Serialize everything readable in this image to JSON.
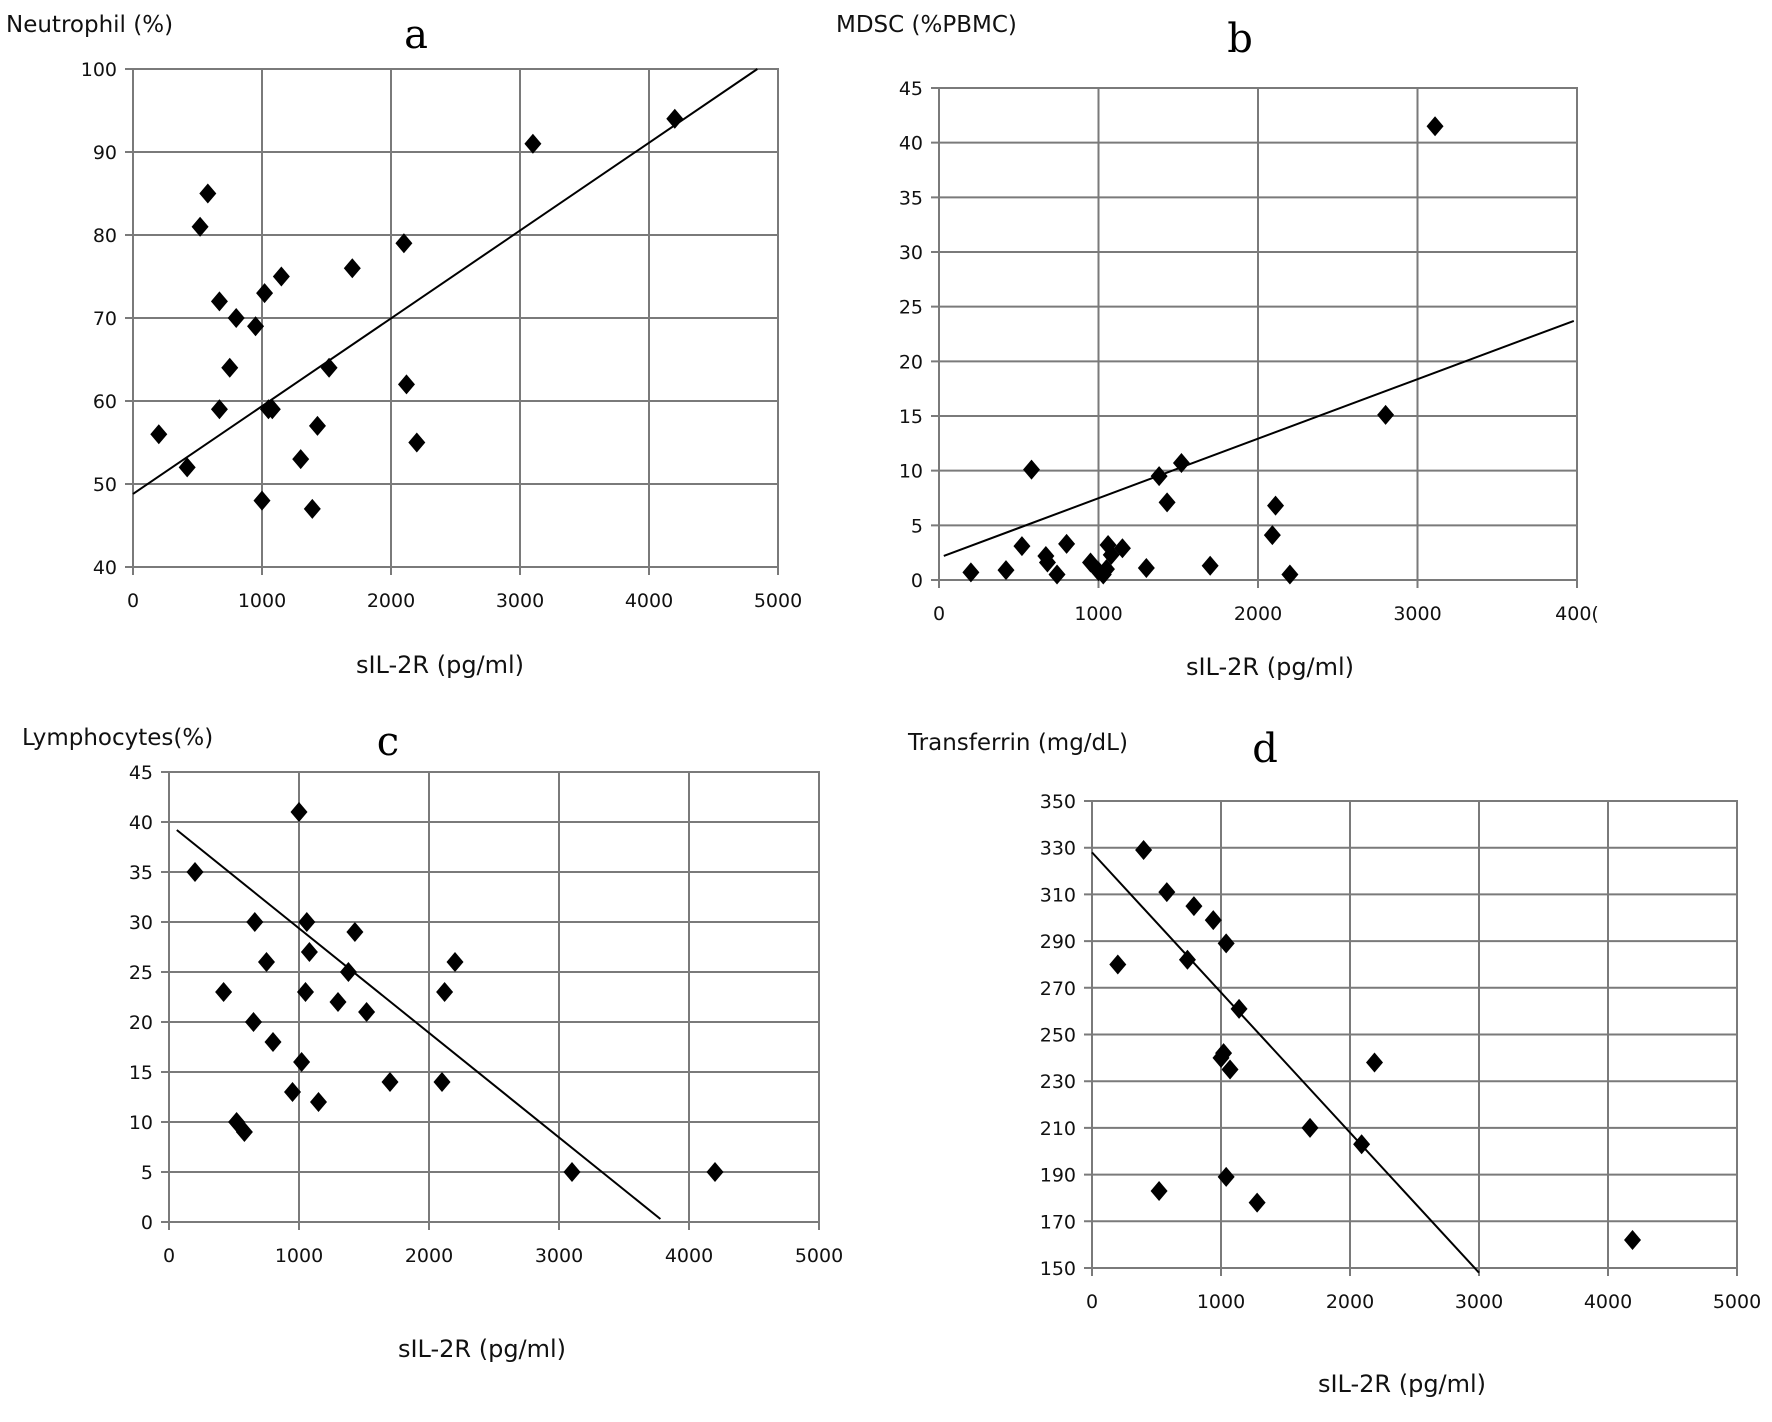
{
  "chart_data": [
    {
      "type": "scatter",
      "panel": "a",
      "title": "a",
      "ylabel": "Neutrophil (%)",
      "xlabel": "sIL-2R (pg/ml)",
      "xlim": [
        0,
        5000
      ],
      "ylim": [
        40,
        100
      ],
      "xticks": [
        0,
        1000,
        2000,
        3000,
        4000,
        5000
      ],
      "yticks": [
        40,
        50,
        60,
        70,
        80,
        90,
        100
      ],
      "xtick_labels": [
        "0",
        "1000",
        "2000",
        "3000",
        "4000",
        "5000"
      ],
      "ytick_labels": [
        "40",
        "50",
        "60",
        "70",
        "80",
        "90",
        "100"
      ],
      "grid": true,
      "marker": "diamond",
      "points": [
        [
          200,
          56
        ],
        [
          420,
          52
        ],
        [
          520,
          81
        ],
        [
          580,
          85
        ],
        [
          670,
          59
        ],
        [
          670,
          72
        ],
        [
          750,
          64
        ],
        [
          800,
          70
        ],
        [
          950,
          69
        ],
        [
          1000,
          48
        ],
        [
          1020,
          73
        ],
        [
          1050,
          59
        ],
        [
          1080,
          59
        ],
        [
          1150,
          75
        ],
        [
          1300,
          53
        ],
        [
          1390,
          47
        ],
        [
          1430,
          57
        ],
        [
          1520,
          64
        ],
        [
          1700,
          76
        ],
        [
          2100,
          79
        ],
        [
          2120,
          62
        ],
        [
          2200,
          55
        ],
        [
          3100,
          91
        ],
        [
          4200,
          94
        ]
      ],
      "trendline": [
        [
          0,
          48.8
        ],
        [
          4840,
          100
        ]
      ]
    },
    {
      "type": "scatter",
      "panel": "b",
      "title": "b",
      "ylabel": "MDSC (%PBMC)",
      "xlabel": "sIL-2R (pg/ml)",
      "xlim": [
        0,
        4000
      ],
      "ylim": [
        0,
        45
      ],
      "xticks": [
        0,
        1000,
        2000,
        3000,
        4000
      ],
      "yticks": [
        0,
        5,
        10,
        15,
        20,
        25,
        30,
        35,
        40,
        45
      ],
      "xtick_labels": [
        "0",
        "1000",
        "2000",
        "3000",
        "400("
      ],
      "ytick_labels": [
        "0",
        "5",
        "10",
        "15",
        "20",
        "25",
        "30",
        "35",
        "40",
        "45"
      ],
      "grid": true,
      "marker": "diamond",
      "points": [
        [
          200,
          0.7
        ],
        [
          420,
          0.9
        ],
        [
          520,
          3.1
        ],
        [
          580,
          10.1
        ],
        [
          670,
          2.2
        ],
        [
          680,
          1.6
        ],
        [
          740,
          0.5
        ],
        [
          800,
          3.3
        ],
        [
          950,
          1.6
        ],
        [
          1000,
          0.8
        ],
        [
          1030,
          0.5
        ],
        [
          1050,
          1.0
        ],
        [
          1060,
          3.2
        ],
        [
          1080,
          2.3
        ],
        [
          1150,
          2.9
        ],
        [
          1300,
          1.1
        ],
        [
          1380,
          9.5
        ],
        [
          1430,
          7.1
        ],
        [
          1520,
          10.7
        ],
        [
          1700,
          1.3
        ],
        [
          2090,
          4.1
        ],
        [
          2110,
          6.8
        ],
        [
          2200,
          0.5
        ],
        [
          2800,
          15.1
        ],
        [
          3110,
          41.5
        ]
      ],
      "trendline": [
        [
          30,
          2.2
        ],
        [
          3980,
          23.7
        ]
      ]
    },
    {
      "type": "scatter",
      "panel": "c",
      "title": "c",
      "ylabel": "Lymphocytes(%)",
      "xlabel": "sIL-2R (pg/ml)",
      "xlim": [
        0,
        5000
      ],
      "ylim": [
        0,
        45
      ],
      "xticks": [
        0,
        1000,
        2000,
        3000,
        4000,
        5000
      ],
      "yticks": [
        0,
        5,
        10,
        15,
        20,
        25,
        30,
        35,
        40,
        45
      ],
      "xtick_labels": [
        "0",
        "1000",
        "2000",
        "3000",
        "4000",
        "5000"
      ],
      "ytick_labels": [
        "0",
        "5",
        "10",
        "15",
        "20",
        "25",
        "30",
        "35",
        "40",
        "45"
      ],
      "grid": true,
      "marker": "diamond",
      "points": [
        [
          200,
          35
        ],
        [
          420,
          23
        ],
        [
          520,
          10
        ],
        [
          580,
          9
        ],
        [
          650,
          20
        ],
        [
          660,
          30
        ],
        [
          750,
          26
        ],
        [
          800,
          18
        ],
        [
          950,
          13
        ],
        [
          1000,
          41
        ],
        [
          1020,
          16
        ],
        [
          1050,
          23
        ],
        [
          1060,
          30
        ],
        [
          1080,
          27
        ],
        [
          1150,
          12
        ],
        [
          1300,
          22
        ],
        [
          1380,
          25
        ],
        [
          1430,
          29
        ],
        [
          1520,
          21
        ],
        [
          1700,
          14
        ],
        [
          2100,
          14
        ],
        [
          2120,
          23
        ],
        [
          2200,
          26
        ],
        [
          3100,
          5
        ],
        [
          4200,
          5
        ]
      ],
      "trendline": [
        [
          60,
          39.2
        ],
        [
          3780,
          0.3
        ]
      ]
    },
    {
      "type": "scatter",
      "panel": "d",
      "title": "d",
      "ylabel": "Transferrin (mg/dL)",
      "xlabel": "sIL-2R (pg/ml)",
      "xlim": [
        0,
        5000
      ],
      "ylim": [
        150,
        350
      ],
      "xticks": [
        0,
        1000,
        2000,
        3000,
        4000,
        5000
      ],
      "yticks": [
        150,
        170,
        190,
        210,
        230,
        250,
        270,
        290,
        310,
        330,
        350
      ],
      "xtick_labels": [
        "0",
        "1000",
        "2000",
        "3000",
        "4000",
        "5000"
      ],
      "ytick_labels": [
        "150",
        "170",
        "190",
        "210",
        "230",
        "250",
        "270",
        "290",
        "310",
        "330",
        "350"
      ],
      "grid": true,
      "marker": "diamond",
      "points": [
        [
          200,
          280
        ],
        [
          400,
          329
        ],
        [
          520,
          183
        ],
        [
          580,
          311
        ],
        [
          740,
          282
        ],
        [
          790,
          305
        ],
        [
          940,
          299
        ],
        [
          1000,
          240
        ],
        [
          1020,
          242
        ],
        [
          1040,
          289
        ],
        [
          1040,
          189
        ],
        [
          1070,
          235
        ],
        [
          1140,
          261
        ],
        [
          1280,
          178
        ],
        [
          1690,
          210
        ],
        [
          2090,
          203
        ],
        [
          2190,
          238
        ],
        [
          4190,
          162
        ]
      ],
      "trendline": [
        [
          0,
          328
        ],
        [
          3000,
          148
        ]
      ]
    }
  ]
}
